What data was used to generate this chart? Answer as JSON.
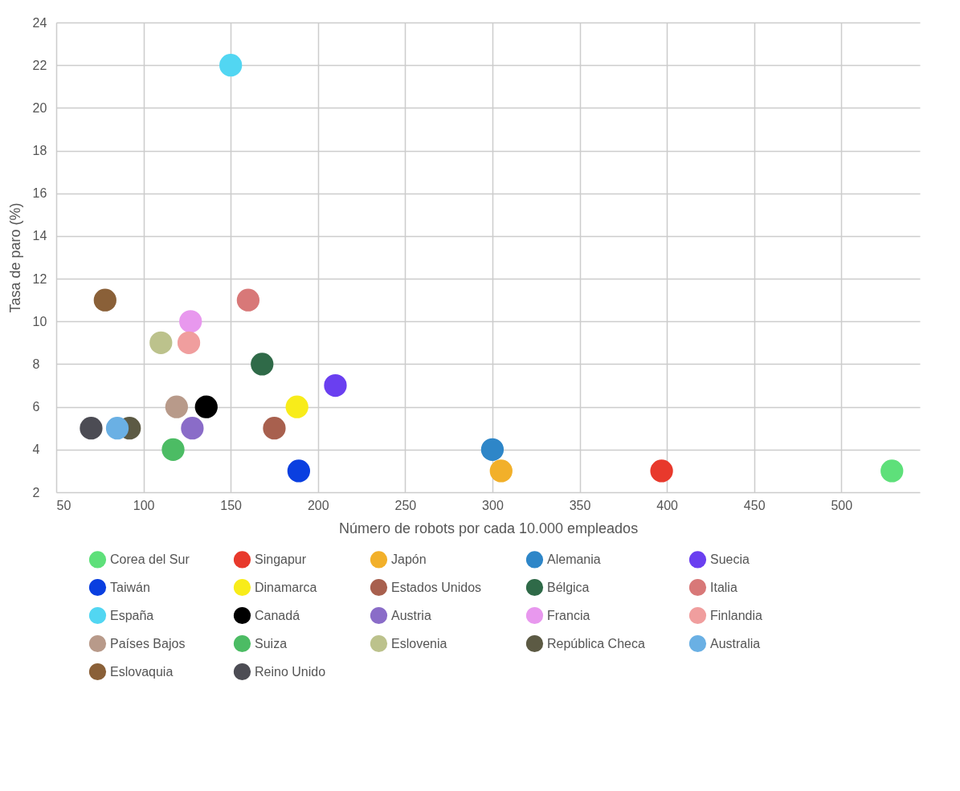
{
  "chart_data": {
    "type": "scatter",
    "xlabel": "Número de robots por cada 10.000 empleados",
    "ylabel": "Tasa de paro (%)",
    "xlim": [
      50,
      545
    ],
    "xticks": [
      50,
      100,
      150,
      200,
      250,
      300,
      350,
      400,
      450,
      500
    ],
    "ylim": [
      2,
      24
    ],
    "yticks": [
      2,
      4,
      6,
      8,
      10,
      12,
      14,
      16,
      18,
      20,
      22,
      24
    ],
    "grid": true,
    "legend": "bottom",
    "marker": "circle",
    "series": [
      {
        "name": "Corea del Sur",
        "color": "#5ee07a",
        "x": [
          529
        ],
        "values": [
          3
        ]
      },
      {
        "name": "Singapur",
        "color": "#e8392c",
        "x": [
          397
        ],
        "values": [
          3
        ]
      },
      {
        "name": "Japón",
        "color": "#f2b02a",
        "x": [
          305
        ],
        "values": [
          3
        ]
      },
      {
        "name": "Alemania",
        "color": "#2e86c8",
        "x": [
          300
        ],
        "values": [
          4
        ]
      },
      {
        "name": "Suecia",
        "color": "#6a3ff0",
        "x": [
          210
        ],
        "values": [
          7
        ]
      },
      {
        "name": "Taiwán",
        "color": "#0a3fe0",
        "x": [
          189
        ],
        "values": [
          3
        ]
      },
      {
        "name": "Dinamarca",
        "color": "#f8ec1a",
        "x": [
          188
        ],
        "values": [
          6
        ]
      },
      {
        "name": "Estados Unidos",
        "color": "#a8604e",
        "x": [
          175
        ],
        "values": [
          5
        ]
      },
      {
        "name": "Bélgica",
        "color": "#2f6a48",
        "x": [
          168
        ],
        "values": [
          8
        ]
      },
      {
        "name": "Italia",
        "color": "#d87878",
        "x": [
          160
        ],
        "values": [
          11
        ]
      },
      {
        "name": "España",
        "color": "#52d6f2",
        "x": [
          150
        ],
        "values": [
          22
        ]
      },
      {
        "name": "Canadá",
        "color": "#000000",
        "x": [
          136
        ],
        "values": [
          6
        ]
      },
      {
        "name": "Austria",
        "color": "#8a6cc8",
        "x": [
          128
        ],
        "values": [
          5
        ]
      },
      {
        "name": "Francia",
        "color": "#e898ee",
        "x": [
          127
        ],
        "values": [
          10
        ]
      },
      {
        "name": "Finlandia",
        "color": "#f09e9e",
        "x": [
          126
        ],
        "values": [
          9
        ]
      },
      {
        "name": "Países Bajos",
        "color": "#b89a8a",
        "x": [
          119
        ],
        "values": [
          6
        ]
      },
      {
        "name": "Suiza",
        "color": "#4cbc64",
        "x": [
          117
        ],
        "values": [
          4
        ]
      },
      {
        "name": "Eslovenia",
        "color": "#bcc28c",
        "x": [
          110
        ],
        "values": [
          9
        ]
      },
      {
        "name": "República Checa",
        "color": "#5c5a44",
        "x": [
          92
        ],
        "values": [
          5
        ]
      },
      {
        "name": "Australia",
        "color": "#6ab0e4",
        "x": [
          85
        ],
        "values": [
          5
        ]
      },
      {
        "name": "Eslovaquia",
        "color": "#8a6038",
        "x": [
          78
        ],
        "values": [
          11
        ]
      },
      {
        "name": "Reino Unido",
        "color": "#4c4c54",
        "x": [
          70
        ],
        "values": [
          5
        ]
      }
    ]
  }
}
